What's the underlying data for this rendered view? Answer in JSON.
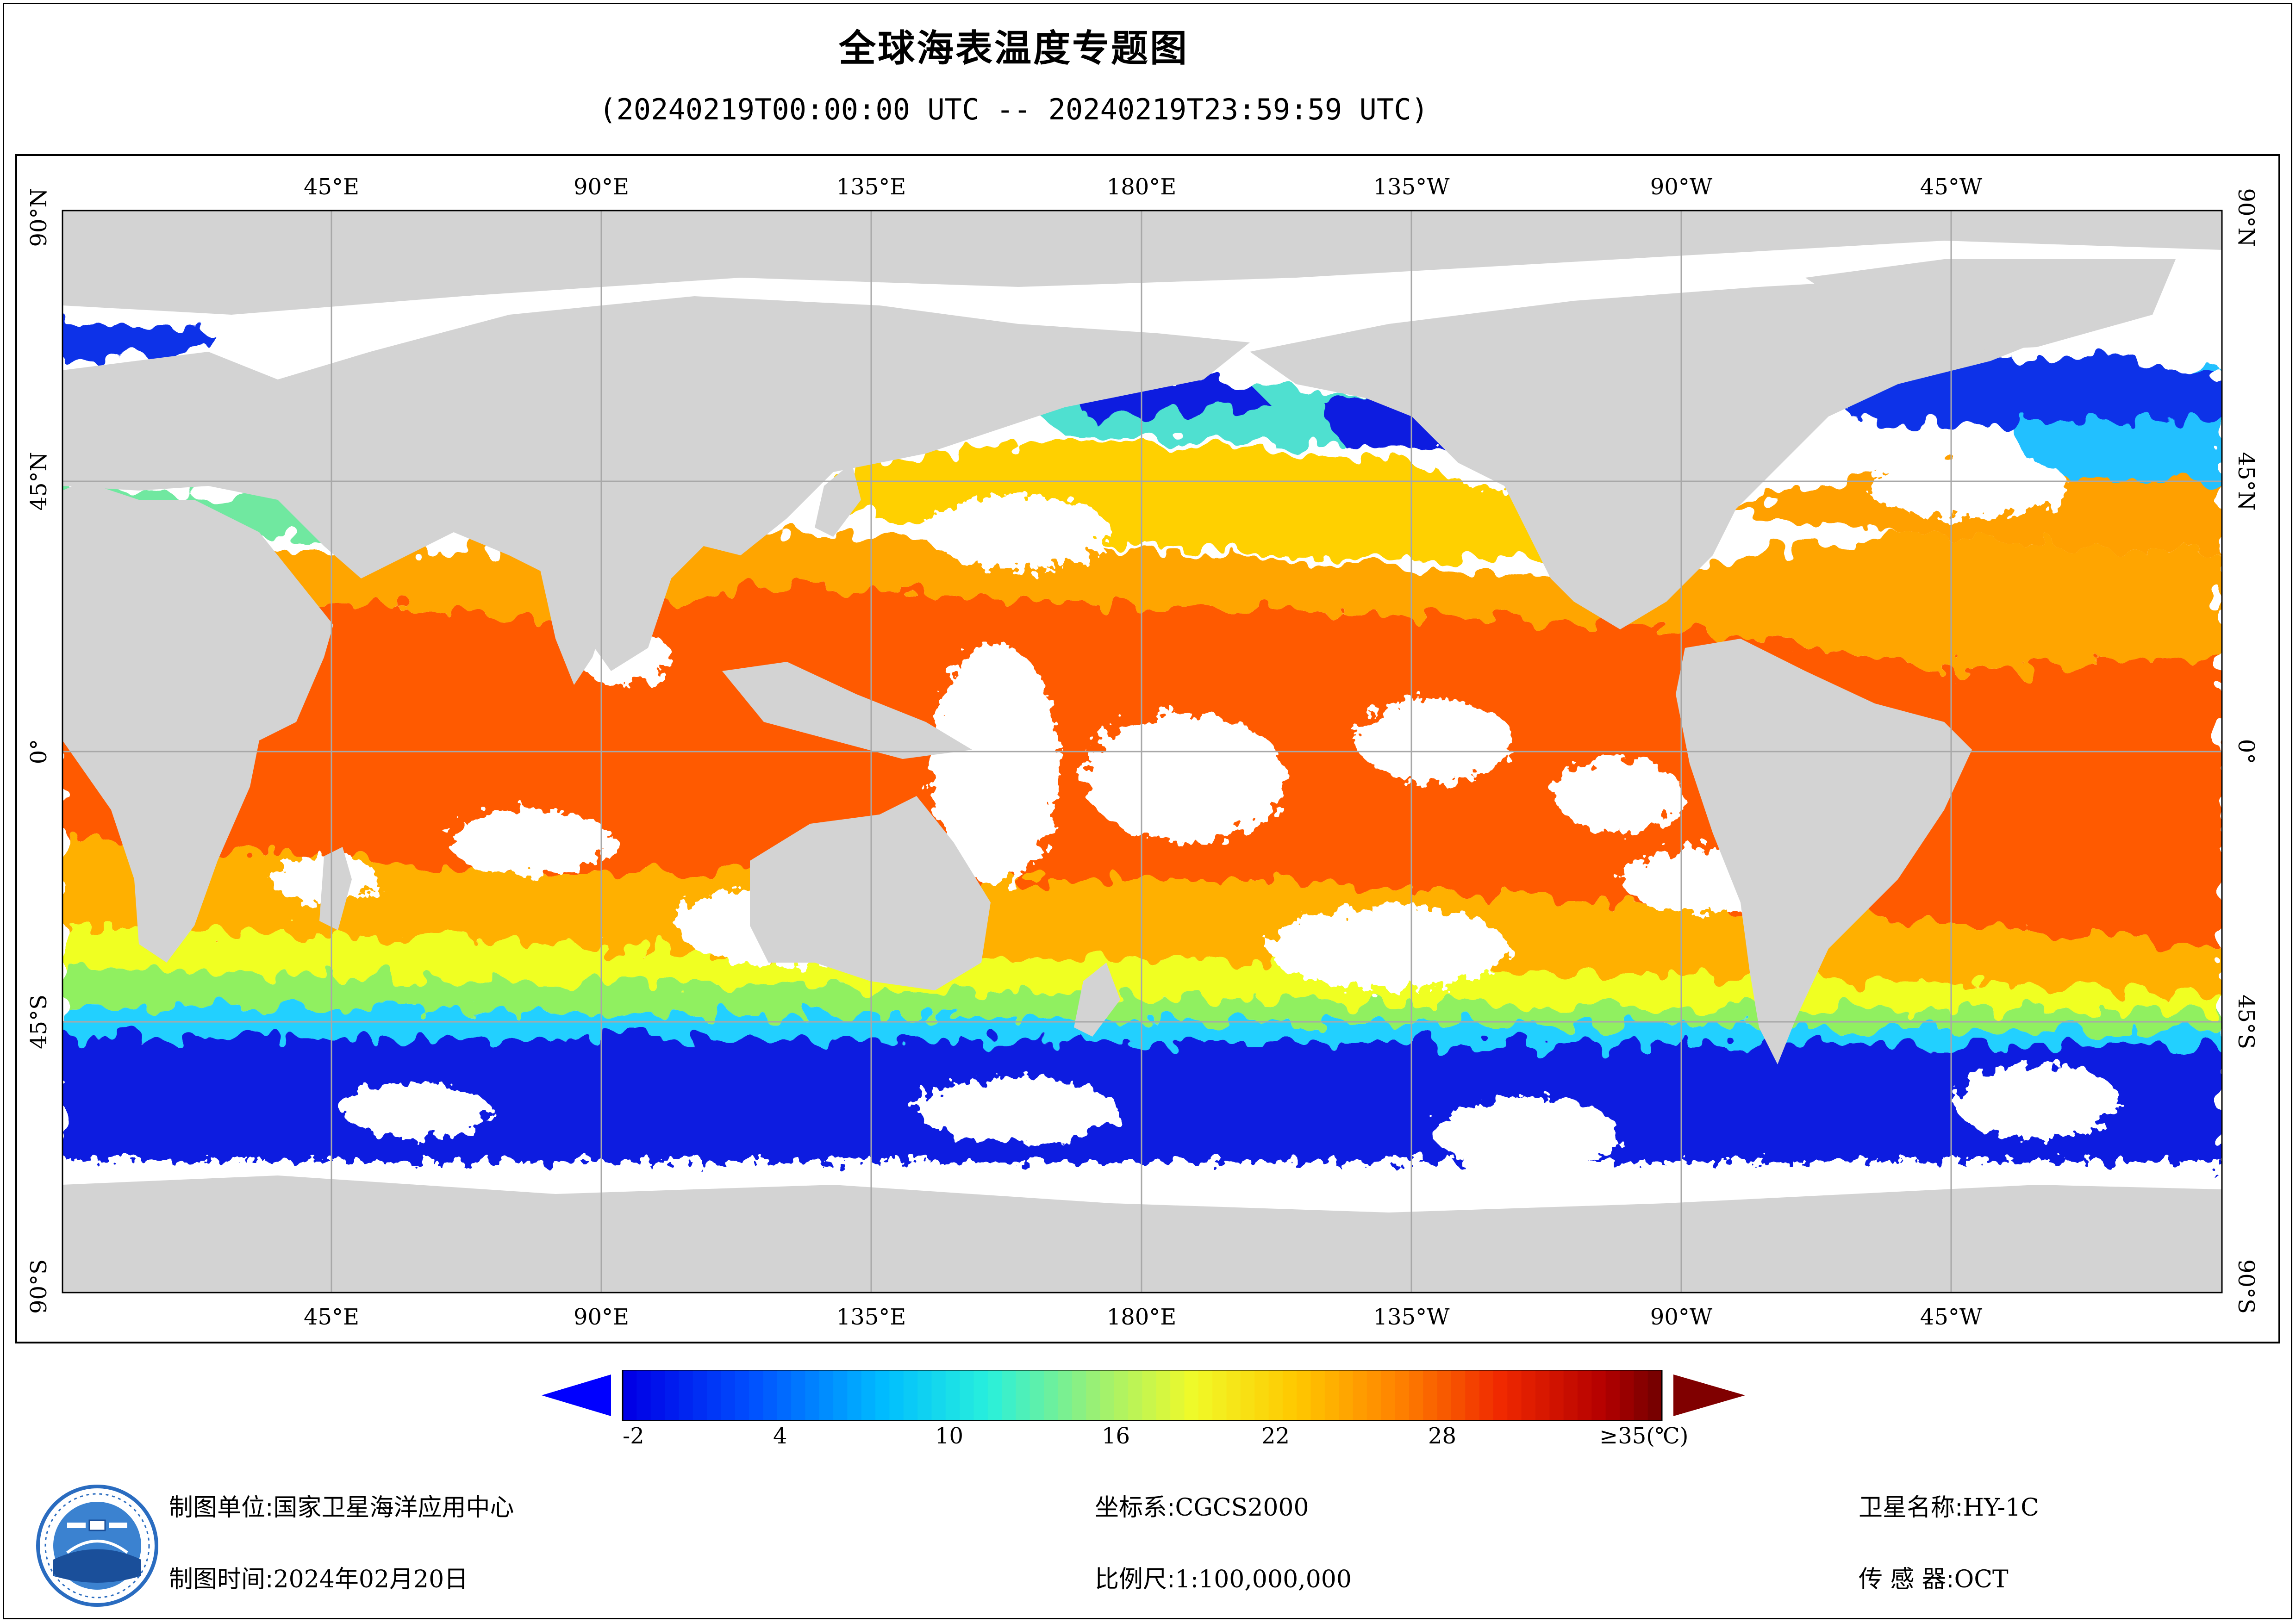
{
  "title": "全球海表温度专题图",
  "subtitle": "(20240219T00:00:00 UTC -- 20240219T23:59:59 UTC)",
  "map": {
    "top_ticks": [
      "45°E",
      "90°E",
      "135°E",
      "180°E",
      "135°W",
      "90°W",
      "45°W"
    ],
    "bottom_ticks": [
      "45°E",
      "90°E",
      "135°E",
      "180°E",
      "135°W",
      "90°W",
      "45°W"
    ],
    "left_ticks": [
      "90°N",
      "45°N",
      "0°",
      "45°S",
      "90°S"
    ],
    "right_ticks": [
      "90°N",
      "45°N",
      "0°",
      "45°S",
      "90°S"
    ],
    "land_color": "#d3d3d3",
    "nodata_color": "#ffffff",
    "grid_color": "#a8a8a8",
    "projection": "equirectangular",
    "center_longitude": "180°E"
  },
  "colorbar": {
    "labels": [
      "-2",
      "4",
      "10",
      "16",
      "22",
      "28"
    ],
    "max_label": "≥35(℃)",
    "min_value": -2,
    "max_value": 35,
    "arrow_low_color": "#0000ff",
    "arrow_high_color": "#800000"
  },
  "footer": {
    "unit_key": "制图单位:",
    "unit_value": "国家卫星海洋应用中心",
    "time_key": "制图时间:",
    "time_value": "2024年02月20日",
    "crs_key": "坐标系:",
    "crs_value": "CGCS2000",
    "scale_key": "比例尺:",
    "scale_value": "1:100,000,000",
    "satellite_key": "卫星名称:",
    "satellite_value": "HY-1C",
    "sensor_key": "传 感 器:",
    "sensor_value": "OCT"
  }
}
